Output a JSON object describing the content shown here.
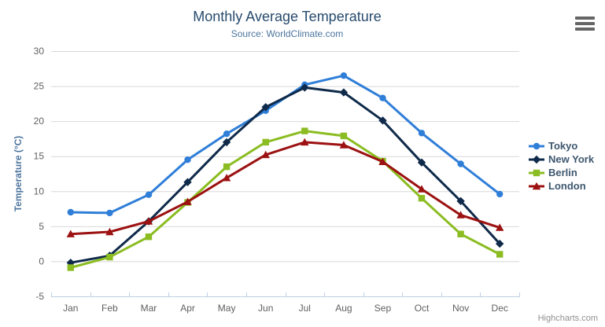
{
  "header": {
    "title": "Monthly Average Temperature",
    "subtitle": "Source: WorldClimate.com"
  },
  "toolbar": {
    "export_menu_icon": "hamburger-icon"
  },
  "credits": {
    "label": "Highcharts.com"
  },
  "theme": {
    "background": "#ffffff",
    "title_color": "#274b6d",
    "subtitle_color": "#4d759e",
    "axis_title_color": "#4d759e",
    "axis_label_color": "#606060",
    "grid_color": "#d8d8d8",
    "axis_line_color": "#c0d0e0",
    "legend_text_color": "#3e576f",
    "credits_color": "#909090",
    "menu_icon_color": "#666666"
  },
  "chart_data": {
    "type": "line",
    "title": "Monthly Average Temperature",
    "subtitle": "Source: WorldClimate.com",
    "categories": [
      "Jan",
      "Feb",
      "Mar",
      "Apr",
      "May",
      "Jun",
      "Jul",
      "Aug",
      "Sep",
      "Oct",
      "Nov",
      "Dec"
    ],
    "series": [
      {
        "name": "Tokyo",
        "color": "#2f7ed8",
        "marker": "circle",
        "values": [
          7.0,
          6.9,
          9.5,
          14.5,
          18.2,
          21.5,
          25.2,
          26.5,
          23.3,
          18.3,
          13.9,
          9.6
        ]
      },
      {
        "name": "New York",
        "color": "#0f2a4a",
        "marker": "diamond",
        "values": [
          -0.2,
          0.8,
          5.7,
          11.3,
          17.0,
          22.0,
          24.8,
          24.1,
          20.1,
          14.1,
          8.6,
          2.5
        ]
      },
      {
        "name": "Berlin",
        "color": "#8bbc21",
        "marker": "square",
        "values": [
          -0.9,
          0.6,
          3.5,
          8.4,
          13.5,
          17.0,
          18.6,
          17.9,
          14.3,
          9.0,
          3.9,
          1.0
        ]
      },
      {
        "name": "London",
        "color": "#9c1111",
        "marker": "triangle",
        "values": [
          3.9,
          4.2,
          5.7,
          8.5,
          11.9,
          15.2,
          17.0,
          16.6,
          14.2,
          10.3,
          6.6,
          4.8
        ]
      }
    ],
    "xlabel": "",
    "ylabel": "Temperature (°C)",
    "ylim": [
      -5,
      30
    ],
    "yticks": [
      -5,
      0,
      5,
      10,
      15,
      20,
      25,
      30
    ],
    "grid": true,
    "legend_position": "right"
  }
}
